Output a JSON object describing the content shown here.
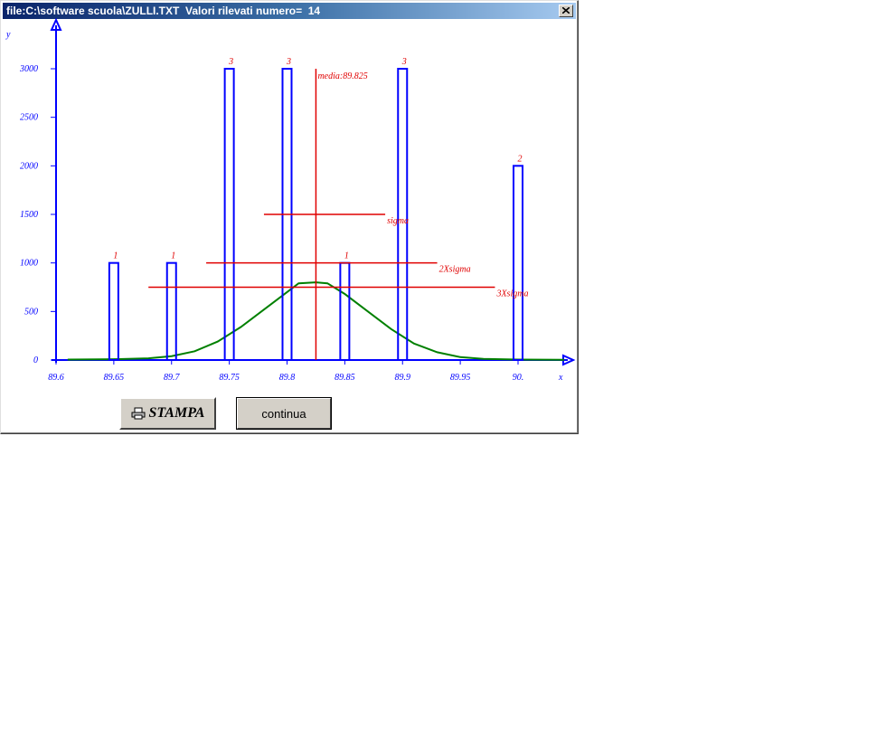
{
  "window": {
    "title": "file:C:\\software scuola\\ZULLI.TXT  Valori rilevati numero=  14",
    "close_icon": "close-icon"
  },
  "buttons": {
    "stampa_label": "STAMPA",
    "stampa_icon": "printer-icon",
    "continua_label": "continua"
  },
  "chart_data": {
    "type": "bar",
    "xlabel": "x",
    "ylabel": "y",
    "xlim": [
      89.6,
      90.05
    ],
    "ylim": [
      0,
      3000
    ],
    "x_ticks": [
      "89.6",
      "89.65",
      "89.7",
      "89.75",
      "89.8",
      "89.85",
      "89.9",
      "89.95",
      "90."
    ],
    "x_tick_values": [
      89.6,
      89.65,
      89.7,
      89.75,
      89.8,
      89.85,
      89.9,
      89.95,
      90.0
    ],
    "y_ticks": [
      "0",
      "500",
      "1000",
      "1500",
      "2000",
      "2500",
      "3000"
    ],
    "y_tick_values": [
      0,
      500,
      1000,
      1500,
      2000,
      2500,
      3000
    ],
    "bars": [
      {
        "x": 89.65,
        "value": 1000,
        "label": "1"
      },
      {
        "x": 89.7,
        "value": 1000,
        "label": "1"
      },
      {
        "x": 89.75,
        "value": 3000,
        "label": "3"
      },
      {
        "x": 89.8,
        "value": 3000,
        "label": "3"
      },
      {
        "x": 89.85,
        "value": 1000,
        "label": "1"
      },
      {
        "x": 89.9,
        "value": 3000,
        "label": "3"
      },
      {
        "x": 90.0,
        "value": 2000,
        "label": "2"
      }
    ],
    "mean": {
      "value": 89.825,
      "label": "media:89.825"
    },
    "sigma_lines": [
      {
        "label": "sigma",
        "y": 1500,
        "x_from": 89.78,
        "x_to": 89.885
      },
      {
        "label": "2Xsigma",
        "y": 1000,
        "x_from": 89.73,
        "x_to": 89.93
      },
      {
        "label": "3Xsigma",
        "y": 750,
        "x_from": 89.68,
        "x_to": 89.98
      }
    ],
    "curve": {
      "peak": 800,
      "points": [
        [
          89.61,
          5
        ],
        [
          89.65,
          8
        ],
        [
          89.68,
          18
        ],
        [
          89.7,
          40
        ],
        [
          89.72,
          90
        ],
        [
          89.74,
          190
        ],
        [
          89.76,
          340
        ],
        [
          89.78,
          520
        ],
        [
          89.8,
          700
        ],
        [
          89.81,
          790
        ],
        [
          89.825,
          800
        ],
        [
          89.835,
          790
        ],
        [
          89.85,
          680
        ],
        [
          89.87,
          500
        ],
        [
          89.89,
          320
        ],
        [
          89.91,
          170
        ],
        [
          89.93,
          80
        ],
        [
          89.95,
          30
        ],
        [
          89.97,
          12
        ],
        [
          90.0,
          5
        ],
        [
          90.04,
          3
        ]
      ]
    },
    "colors": {
      "axis": "#0000ff",
      "bars": "#0000ff",
      "mean_sigma": "#e00000",
      "curve": "#008000"
    }
  }
}
